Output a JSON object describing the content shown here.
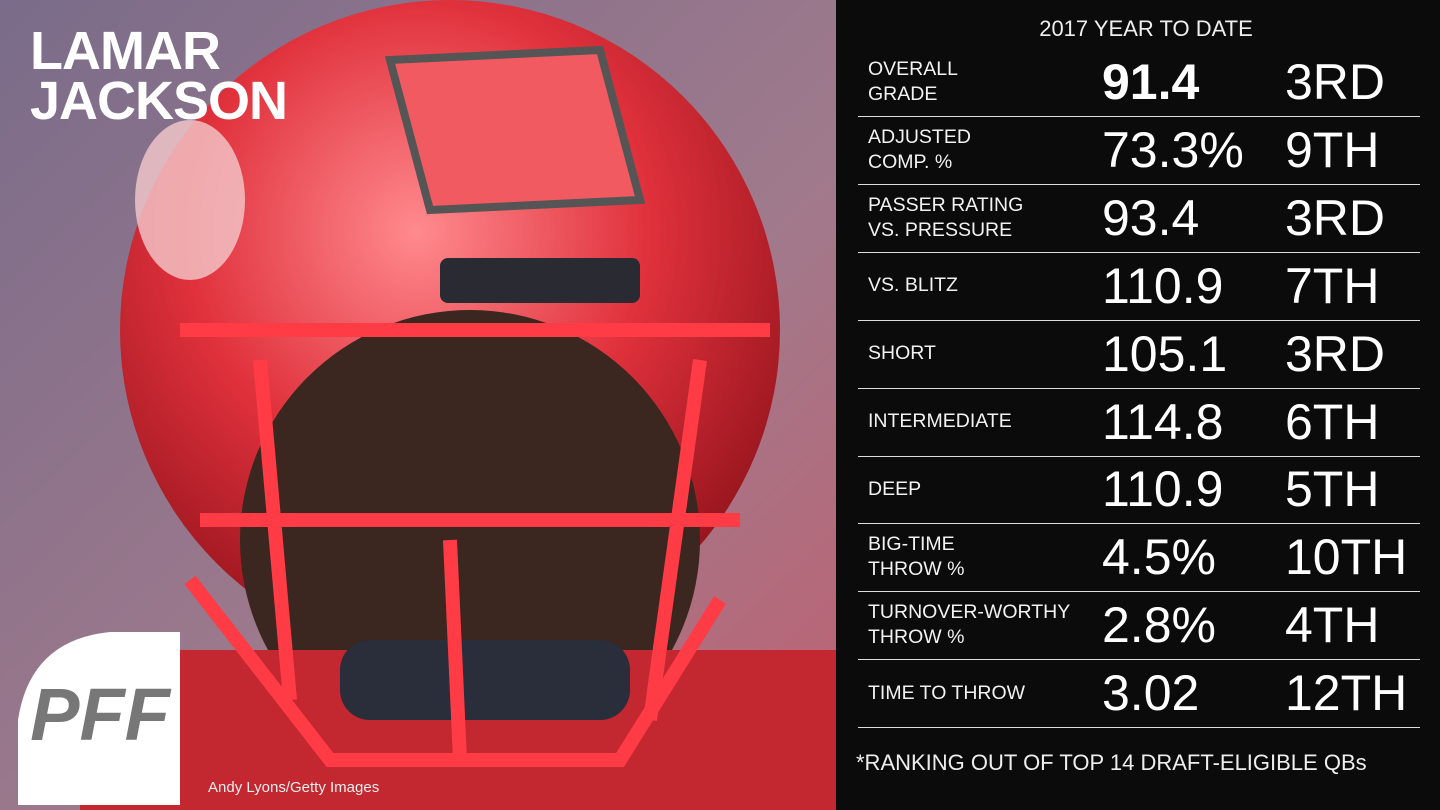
{
  "player": {
    "name_lines": [
      "LAMAR",
      "JACKSON"
    ]
  },
  "logo": "PFF",
  "photo_credit": "Andy Lyons/Getty Images",
  "stats": {
    "header": "2017 YEAR TO DATE",
    "rows": [
      {
        "label_lines": [
          "OVERALL",
          "GRADE"
        ],
        "value": "91.4",
        "rank": "3RD"
      },
      {
        "label_lines": [
          "ADJUSTED",
          "COMP. %"
        ],
        "value": "73.3%",
        "rank": "9TH"
      },
      {
        "label_lines": [
          "PASSER RATING",
          "VS. PRESSURE"
        ],
        "value": "93.4",
        "rank": "3RD"
      },
      {
        "label_lines": [
          "VS. BLITZ"
        ],
        "value": "110.9",
        "rank": "7TH"
      },
      {
        "label_lines": [
          "SHORT"
        ],
        "value": "105.1",
        "rank": "3RD"
      },
      {
        "label_lines": [
          "INTERMEDIATE"
        ],
        "value": "114.8",
        "rank": "6TH"
      },
      {
        "label_lines": [
          "DEEP"
        ],
        "value": "110.9",
        "rank": "5TH"
      },
      {
        "label_lines": [
          "BIG-TIME",
          "THROW %"
        ],
        "value": "4.5%",
        "rank": "10TH"
      },
      {
        "label_lines": [
          "TURNOVER-WORTHY",
          "THROW %"
        ],
        "value": "2.8%",
        "rank": "4TH"
      },
      {
        "label_lines": [
          "TIME TO THROW"
        ],
        "value": "3.02",
        "rank": "12TH"
      }
    ],
    "footnote": "*RANKING OUT OF TOP 14 DRAFT-ELIGIBLE QBs"
  }
}
